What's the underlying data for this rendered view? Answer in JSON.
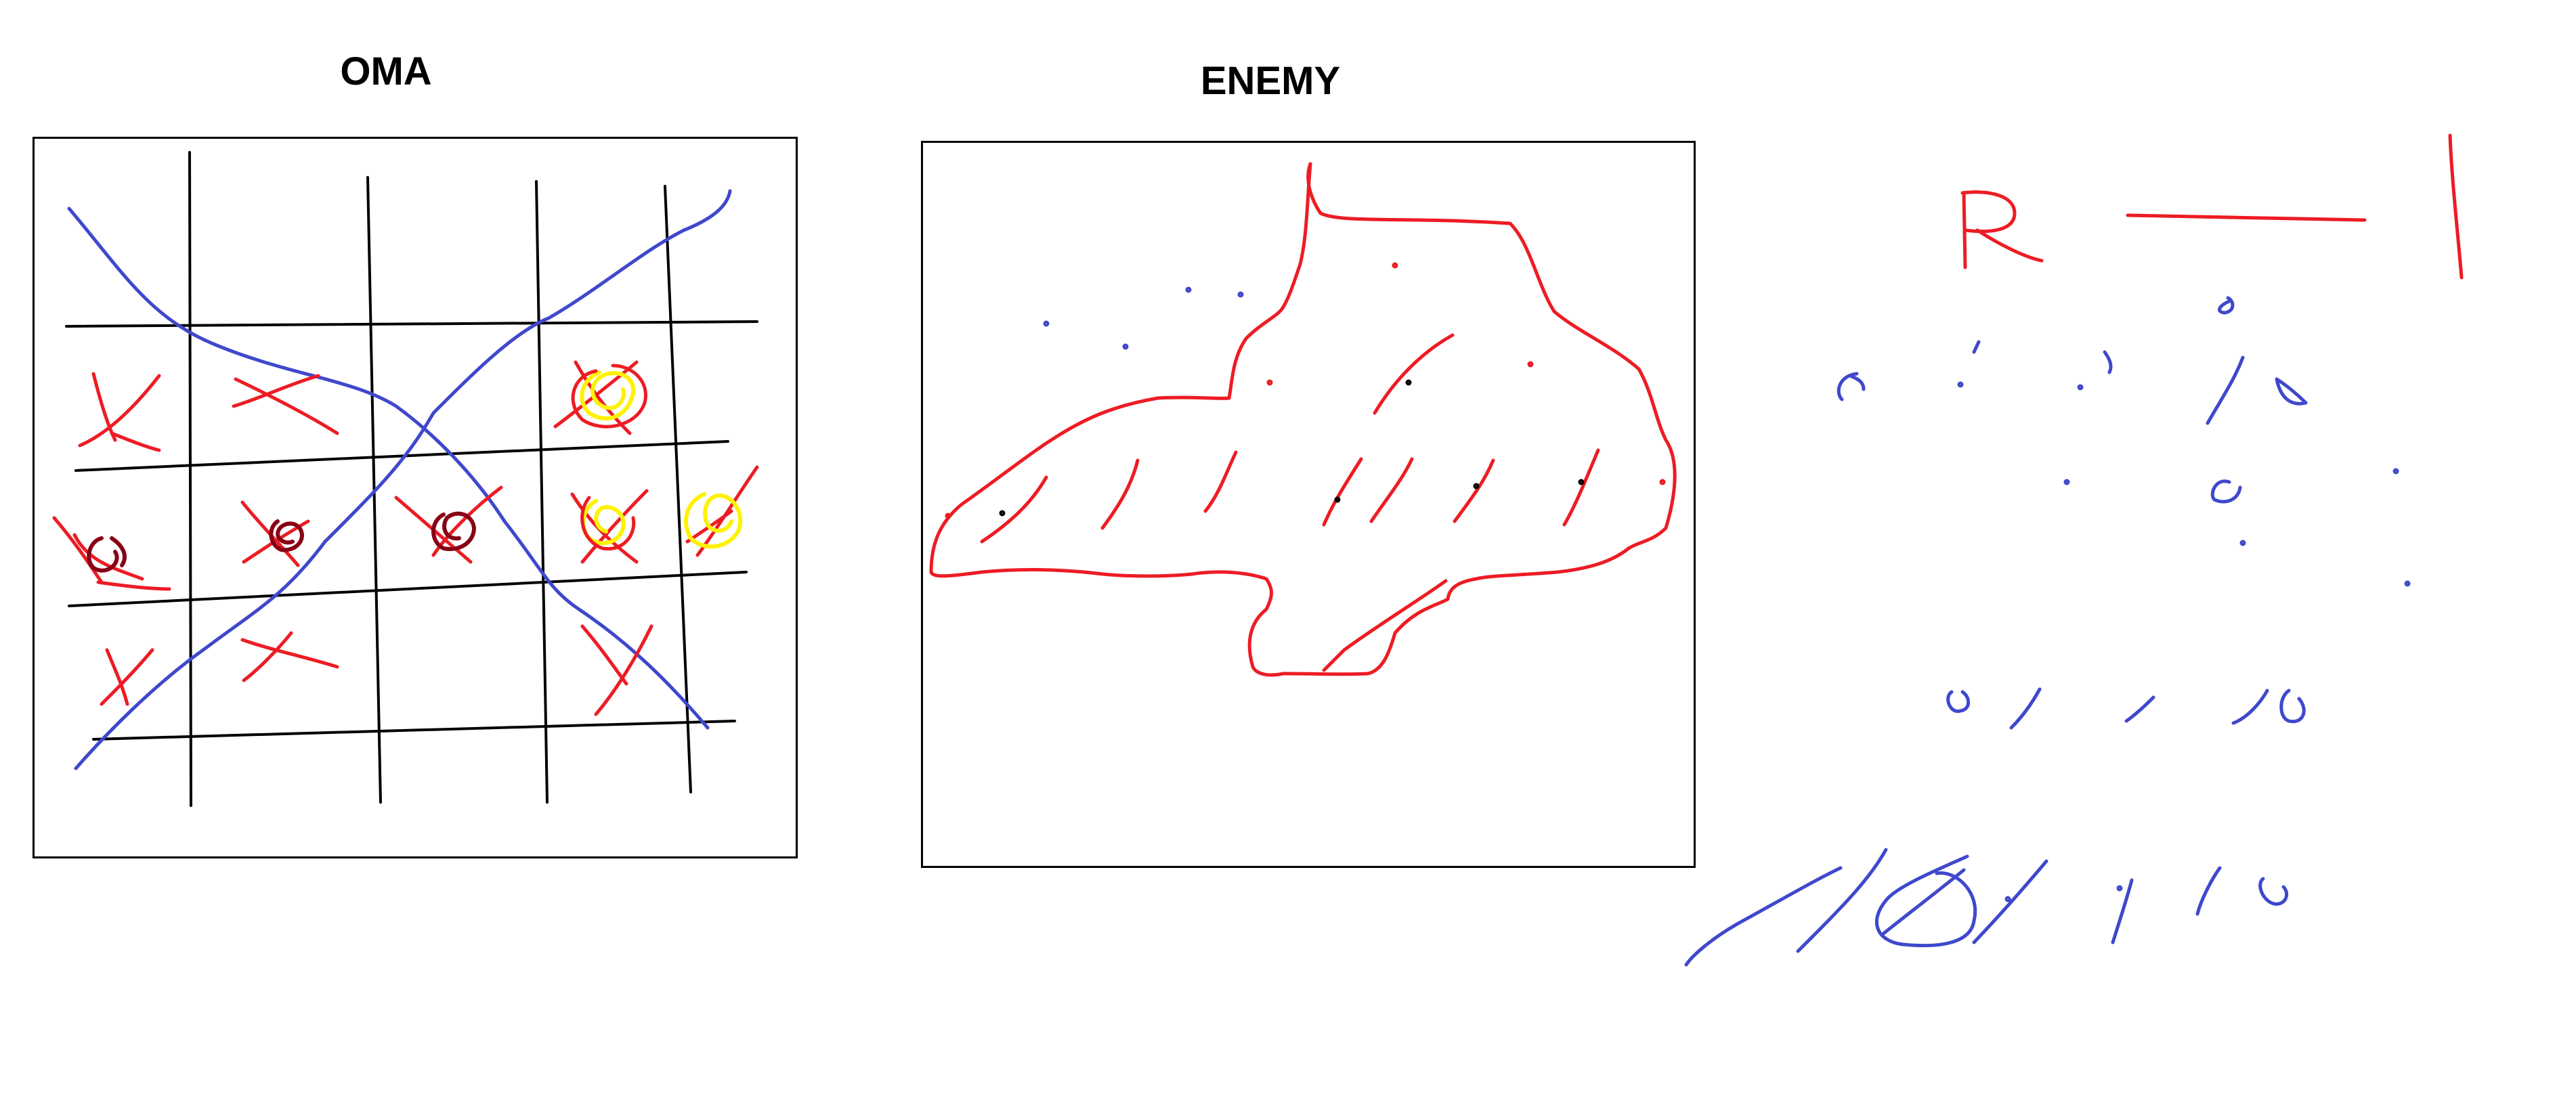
{
  "boards": {
    "own": {
      "title": "OMA"
    },
    "enemy": {
      "title": "ENEMY"
    }
  },
  "legend": {
    "letter": "R"
  },
  "colors": {
    "background": "#ffffff",
    "grid": "#000000",
    "hit_mark": "#ed1c24",
    "pen_blue": "#3f48cc",
    "highlight": "#fff200",
    "dark_mark": "#880015"
  }
}
